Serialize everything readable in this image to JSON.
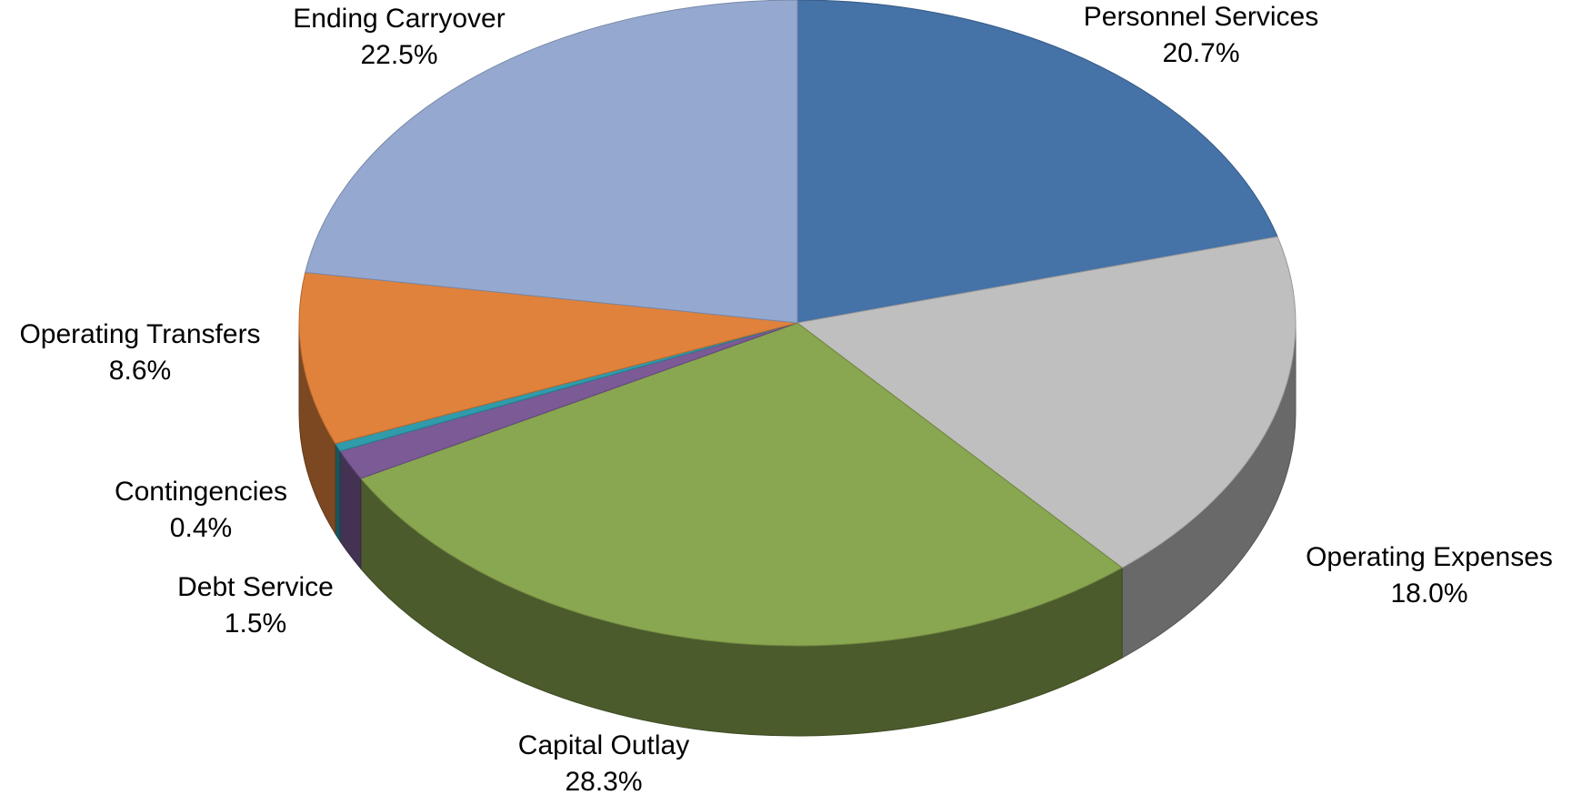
{
  "chart_data": {
    "type": "pie",
    "categories": [
      "Personnel Services",
      "Operating Expenses",
      "Capital Outlay",
      "Debt Service",
      "Contingencies",
      "Operating Transfers",
      "Ending Carryover"
    ],
    "values": [
      20.7,
      18.0,
      28.3,
      1.5,
      0.4,
      8.6,
      22.5
    ],
    "value_labels": [
      "20.7%",
      "18.0%",
      "28.3%",
      "1.5%",
      "0.4%",
      "8.6%",
      "22.5%"
    ],
    "colors": [
      "#4572a7",
      "#bfbfbf",
      "#89a650",
      "#7b5a96",
      "#2f9bab",
      "#e0823c",
      "#95a9d0"
    ]
  }
}
